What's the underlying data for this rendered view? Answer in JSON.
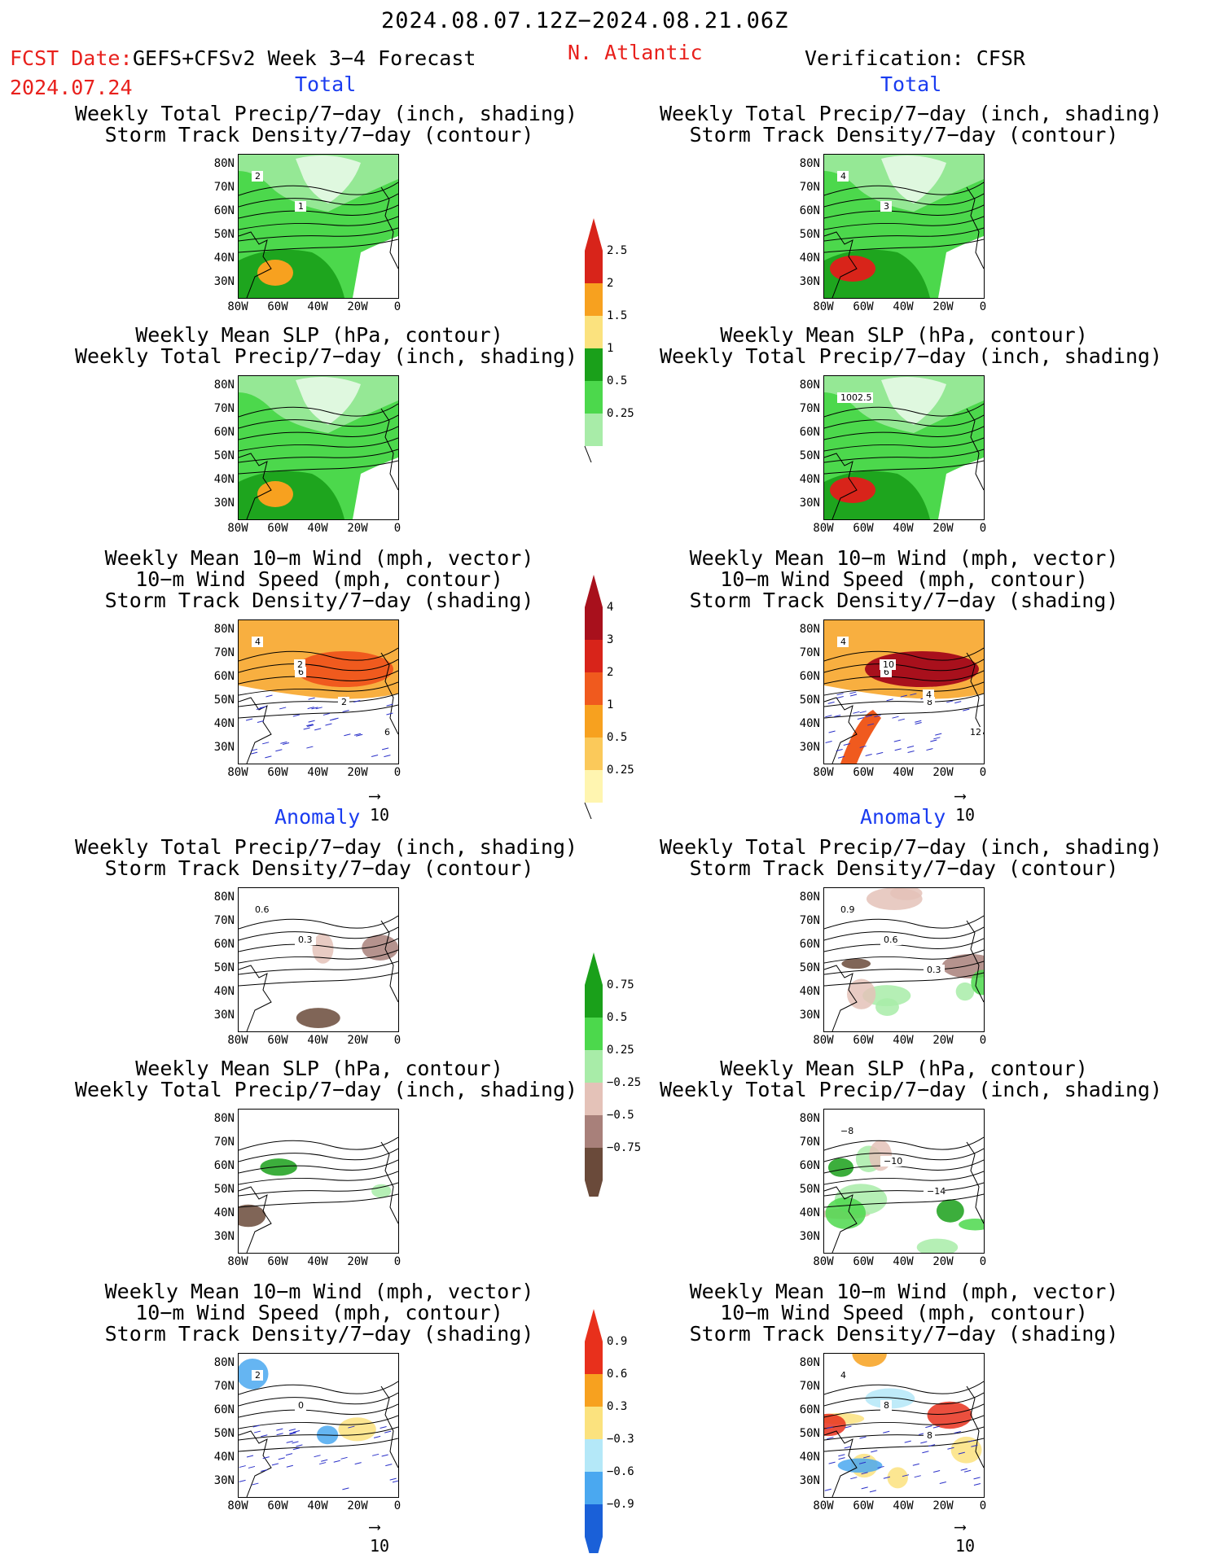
{
  "header": {
    "time_range": "2024.08.07.12Z−2024.08.21.06Z",
    "fcst_prefix": "FCST Date:",
    "model": "GEFS+CFSv2 Week 3−4 Forecast",
    "fcst_date": "2024.07.24",
    "region": "N. Atlantic",
    "verification": "Verification: CFSR",
    "total_label": "Total",
    "anomaly_label": "Anomaly"
  },
  "panel_titles": {
    "precip_storm": [
      "Weekly Total Precip/7−day (inch, shading)",
      "Storm Track Density/7−day (contour)"
    ],
    "slp_precip": [
      "Weekly Mean SLP (hPa, contour)",
      "Weekly Total Precip/7−day (inch, shading)"
    ],
    "wind_storm": [
      "Weekly Mean 10−m Wind (mph, vector)",
      "10−m Wind Speed (mph, contour)",
      "Storm Track Density/7−day (shading)"
    ]
  },
  "lat_labels": [
    "80N",
    "70N",
    "60N",
    "50N",
    "40N",
    "30N"
  ],
  "lon_labels": [
    "80W",
    "60W",
    "40W",
    "20W",
    "0"
  ],
  "vector_ref": "10",
  "colorbars": {
    "precip_total": [
      "2.5",
      "2",
      "1.5",
      "1",
      "0.5",
      "0.25"
    ],
    "storm_total": [
      "4",
      "3",
      "2",
      "1",
      "0.5",
      "0.25"
    ],
    "precip_anom": [
      "0.75",
      "0.5",
      "0.25",
      "−0.25",
      "−0.5",
      "−0.75"
    ],
    "storm_anom": [
      "0.9",
      "0.6",
      "0.3",
      "−0.3",
      "−0.6",
      "−0.9"
    ]
  },
  "colors": {
    "title_red": "#e8201c",
    "label_blue": "#1a3cf0",
    "precip_total": [
      "#d8241a",
      "#f7a11f",
      "#fbe27e",
      "#1aa01a",
      "#4cd84c",
      "#a8eca8"
    ],
    "storm_total": [
      "#a8101c",
      "#d8241a",
      "#f05a1e",
      "#f7a11f",
      "#fbc95a",
      "#fff5b0"
    ],
    "precip_anom": [
      "#1aa01a",
      "#4cd84c",
      "#a8eca8",
      "#e4c2b8",
      "#a8807a",
      "#6a4a3a"
    ],
    "storm_anom": [
      "#e8301c",
      "#f7a11f",
      "#fbe27e",
      "#b4e8f8",
      "#4aa8f0",
      "#1a60d8"
    ]
  },
  "contour_labels": {
    "f_total_storm": [
      "2",
      "1"
    ],
    "v_total_storm": [
      "4",
      "3"
    ],
    "v_total_slp": [
      "1002.5"
    ],
    "f_total_wind": [
      "4",
      "6",
      "2",
      "6",
      "2"
    ],
    "v_total_wind": [
      "4",
      "6",
      "8",
      "12",
      "10",
      "4"
    ],
    "f_anom_storm": [
      "0.6",
      "0.3"
    ],
    "v_anom_storm": [
      "0.9",
      "0.6",
      "0.3"
    ],
    "v_anom_slp": [
      "−8",
      "−10",
      "−14"
    ],
    "f_anom_wind": [
      "2",
      "0"
    ],
    "v_anom_wind": [
      "4",
      "8",
      "8"
    ]
  }
}
